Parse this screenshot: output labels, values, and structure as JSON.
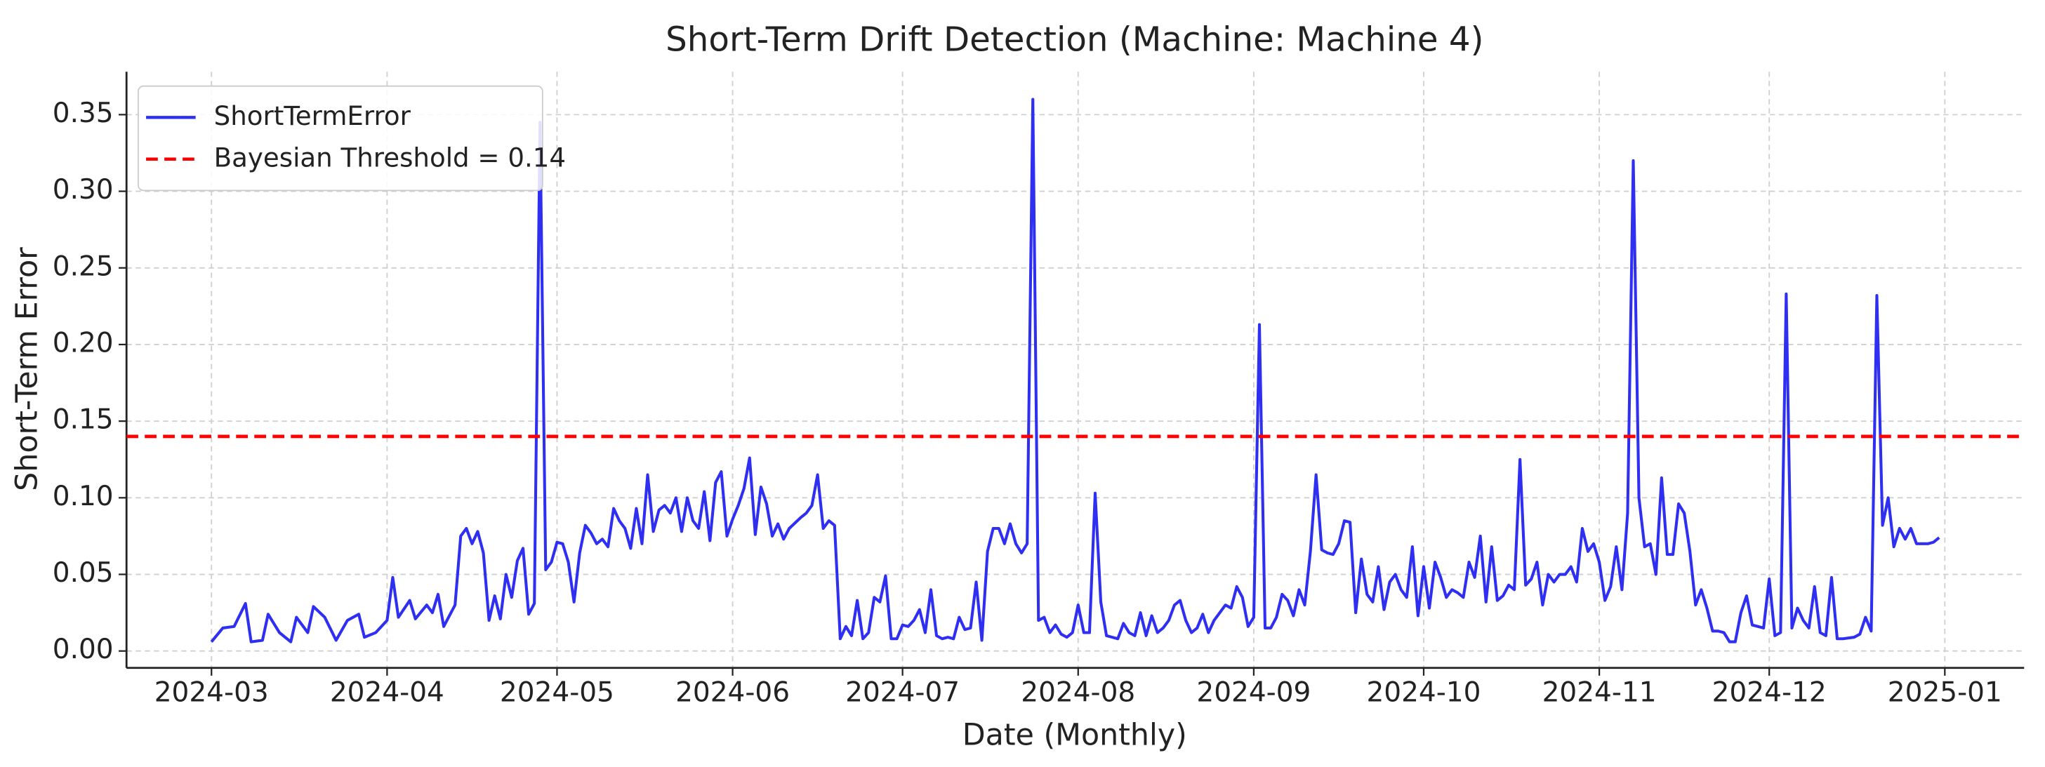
{
  "chart_data": {
    "type": "line",
    "title": "Short-Term Drift Detection (Machine: Machine 4)",
    "x_label": "Date (Monthly)",
    "y_label": "Short-Term Error",
    "x": [
      0,
      2,
      4,
      6,
      7,
      9,
      10,
      12,
      14,
      15,
      17,
      18,
      20,
      22,
      24,
      26,
      27,
      29,
      31,
      32,
      33,
      35,
      36,
      38,
      39,
      40,
      41,
      43,
      44,
      45,
      46,
      47,
      48,
      49,
      50,
      51,
      52,
      53,
      54,
      55,
      56,
      57,
      58,
      59,
      60,
      61,
      62,
      63,
      64,
      65,
      66,
      67,
      68,
      69,
      70,
      71,
      72,
      73,
      74,
      75,
      76,
      77,
      78,
      79,
      80,
      81,
      82,
      83,
      84,
      85,
      86,
      87,
      88,
      89,
      90,
      91,
      92,
      93,
      94,
      95,
      96,
      97,
      98,
      99,
      100,
      101,
      102,
      104,
      105,
      106,
      107,
      108,
      109,
      110,
      111,
      112,
      113,
      114,
      115,
      116,
      117,
      118,
      119,
      120,
      121,
      122,
      123,
      124,
      125,
      126,
      127,
      128,
      129,
      130,
      131,
      132,
      133,
      134,
      135,
      136,
      137,
      138,
      139,
      140,
      141,
      142,
      143,
      144,
      145,
      146,
      147,
      148,
      149,
      150,
      151,
      152,
      153,
      154,
      155,
      156,
      157,
      158,
      159,
      160,
      161,
      162,
      163,
      164,
      165,
      166,
      167,
      168,
      169,
      170,
      171,
      172,
      173,
      174,
      175,
      176,
      177,
      178,
      179,
      180,
      181,
      182,
      183,
      184,
      185,
      186,
      187,
      188,
      189,
      190,
      191,
      192,
      193,
      194,
      195,
      196,
      197,
      198,
      199,
      200,
      201,
      202,
      203,
      204,
      205,
      206,
      207,
      208,
      209,
      210,
      211,
      212,
      213,
      214,
      215,
      216,
      217,
      218,
      219,
      220,
      221,
      222,
      223,
      224,
      225,
      226,
      227,
      228,
      229,
      230,
      231,
      232,
      233,
      234,
      235,
      236,
      237,
      238,
      239,
      240,
      241,
      242,
      243,
      244,
      245,
      246,
      247,
      248,
      249,
      250,
      251,
      252,
      253,
      254,
      255,
      256,
      257,
      258,
      259,
      260,
      261,
      262,
      263,
      264,
      265,
      266,
      267,
      268,
      269,
      270,
      271,
      272,
      273,
      274,
      275,
      276,
      277,
      278,
      279,
      280,
      281,
      282,
      283,
      284,
      285,
      286,
      287,
      288,
      290,
      291,
      292,
      293,
      294,
      295,
      296,
      297,
      298,
      299,
      300,
      301,
      303,
      304,
      305
    ],
    "series": [
      {
        "name": "ShortTermError",
        "color": "#2f2ff2",
        "values": [
          0.006,
          0.015,
          0.016,
          0.031,
          0.006,
          0.007,
          0.024,
          0.012,
          0.006,
          0.022,
          0.012,
          0.029,
          0.022,
          0.007,
          0.02,
          0.024,
          0.009,
          0.012,
          0.02,
          0.048,
          0.022,
          0.033,
          0.021,
          0.03,
          0.025,
          0.037,
          0.016,
          0.03,
          0.075,
          0.08,
          0.07,
          0.078,
          0.064,
          0.02,
          0.036,
          0.021,
          0.05,
          0.035,
          0.059,
          0.067,
          0.024,
          0.031,
          0.345,
          0.053,
          0.058,
          0.071,
          0.07,
          0.058,
          0.032,
          0.064,
          0.082,
          0.077,
          0.07,
          0.073,
          0.068,
          0.093,
          0.085,
          0.08,
          0.067,
          0.093,
          0.07,
          0.115,
          0.078,
          0.092,
          0.095,
          0.09,
          0.1,
          0.078,
          0.1,
          0.085,
          0.08,
          0.104,
          0.072,
          0.11,
          0.117,
          0.075,
          0.086,
          0.095,
          0.106,
          0.126,
          0.076,
          0.107,
          0.096,
          0.075,
          0.083,
          0.073,
          0.08,
          0.087,
          0.09,
          0.095,
          0.115,
          0.08,
          0.085,
          0.082,
          0.008,
          0.016,
          0.01,
          0.033,
          0.008,
          0.012,
          0.035,
          0.032,
          0.049,
          0.008,
          0.008,
          0.017,
          0.016,
          0.02,
          0.027,
          0.012,
          0.04,
          0.01,
          0.008,
          0.009,
          0.008,
          0.022,
          0.014,
          0.015,
          0.045,
          0.007,
          0.065,
          0.08,
          0.08,
          0.07,
          0.083,
          0.07,
          0.064,
          0.07,
          0.36,
          0.02,
          0.022,
          0.012,
          0.017,
          0.011,
          0.009,
          0.012,
          0.03,
          0.012,
          0.012,
          0.103,
          0.032,
          0.01,
          0.009,
          0.008,
          0.018,
          0.012,
          0.01,
          0.025,
          0.01,
          0.023,
          0.012,
          0.015,
          0.02,
          0.03,
          0.033,
          0.02,
          0.012,
          0.015,
          0.024,
          0.012,
          0.02,
          0.025,
          0.03,
          0.028,
          0.042,
          0.035,
          0.016,
          0.022,
          0.213,
          0.015,
          0.015,
          0.022,
          0.037,
          0.033,
          0.023,
          0.04,
          0.03,
          0.065,
          0.115,
          0.066,
          0.064,
          0.063,
          0.07,
          0.085,
          0.084,
          0.025,
          0.06,
          0.037,
          0.032,
          0.055,
          0.027,
          0.045,
          0.05,
          0.04,
          0.035,
          0.068,
          0.023,
          0.055,
          0.028,
          0.058,
          0.048,
          0.035,
          0.04,
          0.038,
          0.035,
          0.058,
          0.048,
          0.075,
          0.032,
          0.068,
          0.033,
          0.036,
          0.043,
          0.04,
          0.125,
          0.043,
          0.047,
          0.058,
          0.03,
          0.05,
          0.045,
          0.05,
          0.05,
          0.055,
          0.045,
          0.08,
          0.065,
          0.07,
          0.058,
          0.033,
          0.042,
          0.068,
          0.04,
          0.09,
          0.32,
          0.1,
          0.068,
          0.07,
          0.05,
          0.113,
          0.063,
          0.063,
          0.096,
          0.09,
          0.065,
          0.03,
          0.04,
          0.028,
          0.013,
          0.013,
          0.012,
          0.006,
          0.006,
          0.025,
          0.036,
          0.017,
          0.016,
          0.015,
          0.047,
          0.01,
          0.012,
          0.233,
          0.015,
          0.028,
          0.02,
          0.015,
          0.042,
          0.012,
          0.01,
          0.048,
          0.008,
          0.008,
          0.009,
          0.011,
          0.022,
          0.013,
          0.232,
          0.082,
          0.1,
          0.068,
          0.08,
          0.073,
          0.08,
          0.07,
          0.07,
          0.071,
          0.074
        ]
      }
    ],
    "threshold": {
      "name": "Bayesian Threshold = 0.14",
      "value": 0.14,
      "color": "#ff0000"
    },
    "xlim": [
      -15,
      320
    ],
    "xticks": [
      {
        "value": 0,
        "label": "2024-03"
      },
      {
        "value": 31,
        "label": "2024-04"
      },
      {
        "value": 61,
        "label": "2024-05"
      },
      {
        "value": 92,
        "label": "2024-06"
      },
      {
        "value": 122,
        "label": "2024-07"
      },
      {
        "value": 153,
        "label": "2024-08"
      },
      {
        "value": 184,
        "label": "2024-09"
      },
      {
        "value": 214,
        "label": "2024-10"
      },
      {
        "value": 245,
        "label": "2024-11"
      },
      {
        "value": 275,
        "label": "2024-12"
      },
      {
        "value": 306,
        "label": "2025-01"
      }
    ],
    "ylim": [
      -0.011,
      0.378
    ],
    "yticks": [
      {
        "value": 0,
        "label": "0.00"
      },
      0.05,
      {
        "value": 0.1,
        "label": "0.10"
      },
      0.15,
      {
        "value": 0.2,
        "label": "0.20"
      },
      0.25,
      {
        "value": 0.3,
        "label": "0.30"
      },
      0.35
    ],
    "grid": true,
    "legend": "upper left"
  }
}
